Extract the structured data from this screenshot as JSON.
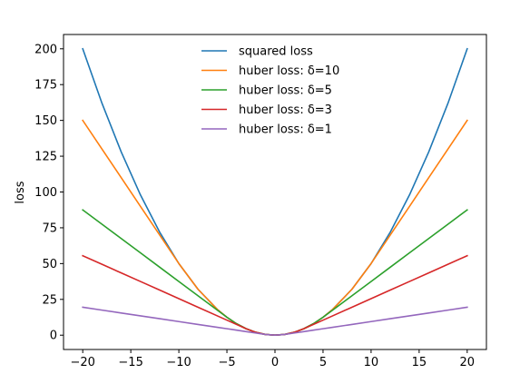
{
  "chart_data": {
    "type": "line",
    "title": "",
    "xlabel": "",
    "ylabel": "loss",
    "xlim": [
      -22,
      22
    ],
    "ylim": [
      -10,
      210
    ],
    "xticks": [
      -20,
      -15,
      -10,
      -5,
      0,
      5,
      10,
      15,
      20
    ],
    "yticks": [
      0,
      25,
      50,
      75,
      100,
      125,
      150,
      175,
      200
    ],
    "grid": false,
    "legend_position": "top-center",
    "x": [
      -20,
      -18,
      -16,
      -14,
      -12,
      -10,
      -8,
      -6,
      -5,
      -4,
      -3,
      -2,
      -1,
      0,
      1,
      2,
      3,
      4,
      5,
      6,
      8,
      10,
      12,
      14,
      16,
      18,
      20
    ],
    "series": [
      {
        "name": "squared loss",
        "color": "#1f77b4",
        "values": [
          200,
          162,
          128,
          98,
          72,
          50,
          32,
          18,
          12.5,
          8,
          4.5,
          2,
          0.5,
          0,
          0.5,
          2,
          4.5,
          8,
          12.5,
          18,
          32,
          50,
          72,
          98,
          128,
          162,
          200
        ]
      },
      {
        "name": "huber loss: δ=10",
        "color": "#ff7f0e",
        "values": [
          150,
          130,
          110,
          90,
          70,
          50,
          32,
          18,
          12.5,
          8,
          4.5,
          2,
          0.5,
          0,
          0.5,
          2,
          4.5,
          8,
          12.5,
          18,
          32,
          50,
          70,
          90,
          110,
          130,
          150
        ]
      },
      {
        "name": "huber loss: δ=5",
        "color": "#2ca02c",
        "values": [
          87.5,
          77.5,
          67.5,
          57.5,
          47.5,
          37.5,
          27.5,
          17.5,
          12.5,
          8,
          4.5,
          2,
          0.5,
          0,
          0.5,
          2,
          4.5,
          8,
          12.5,
          17.5,
          27.5,
          37.5,
          47.5,
          57.5,
          67.5,
          77.5,
          87.5
        ]
      },
      {
        "name": "huber loss: δ=3",
        "color": "#d62728",
        "values": [
          55.5,
          49.5,
          43.5,
          37.5,
          31.5,
          25.5,
          19.5,
          13.5,
          10.5,
          7.5,
          4.5,
          2,
          0.5,
          0,
          0.5,
          2,
          4.5,
          7.5,
          10.5,
          13.5,
          19.5,
          25.5,
          31.5,
          37.5,
          43.5,
          49.5,
          55.5
        ]
      },
      {
        "name": "huber loss: δ=1",
        "color": "#9467bd",
        "values": [
          19.5,
          17.5,
          15.5,
          13.5,
          11.5,
          9.5,
          7.5,
          5.5,
          4.5,
          3.5,
          2.5,
          1.5,
          0.5,
          0,
          0.5,
          1.5,
          2.5,
          3.5,
          4.5,
          5.5,
          7.5,
          9.5,
          11.5,
          13.5,
          15.5,
          17.5,
          19.5
        ]
      }
    ]
  }
}
